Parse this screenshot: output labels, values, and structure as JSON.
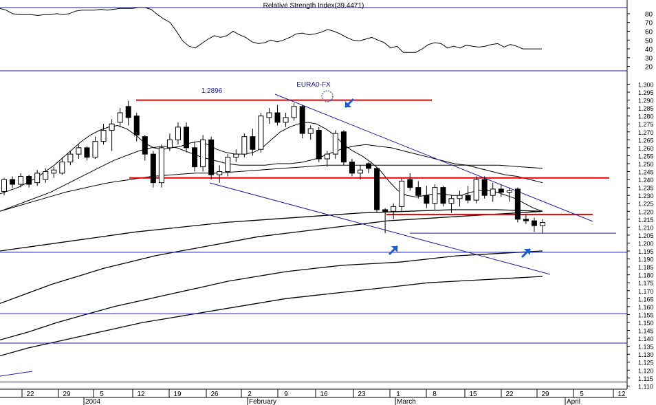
{
  "chart_data": [
    {
      "type": "line",
      "title": "Relative Strength Index(39.4471)",
      "yticks": [
        20,
        30,
        40,
        50,
        60,
        70,
        80
      ],
      "ylim": [
        15,
        87
      ],
      "reference_lines": [
        80,
        20
      ],
      "series": [
        {
          "values": [
            86,
            84,
            80,
            79,
            79,
            79,
            78,
            79,
            79,
            80,
            79,
            80,
            83,
            84,
            84,
            84,
            85,
            84,
            85,
            86,
            86,
            86,
            87,
            87,
            85,
            79,
            74,
            70,
            60,
            49,
            43,
            41,
            46,
            51,
            55,
            53,
            55,
            60,
            56,
            53,
            48,
            46,
            47,
            50,
            48,
            50,
            53,
            57,
            58,
            56,
            57,
            59,
            62,
            60,
            57,
            53,
            50,
            49,
            51,
            53,
            50,
            47,
            41,
            43,
            36,
            36,
            36,
            40,
            45,
            47,
            46,
            41,
            43,
            41,
            44,
            43,
            42,
            43,
            45,
            46,
            42,
            45,
            43,
            40,
            40,
            40,
            40
          ]
        }
      ]
    },
    {
      "type": "candlestick",
      "instrument": "EURA0-FX",
      "annotation": "1,2896",
      "yticks": [
        "1.300",
        "1.295",
        "1.290",
        "1.285",
        "1.280",
        "1.275",
        "1.270",
        "1.265",
        "1.260",
        "1.255",
        "1.250",
        "1.245",
        "1.240",
        "1.235",
        "1.230",
        "1.225",
        "1.220",
        "1.215",
        "1.210",
        "1.205",
        "1.200",
        "1.195",
        "1.190",
        "1.185",
        "1.180",
        "1.175",
        "1.170",
        "1.165",
        "1.160",
        "1.155",
        "1.150",
        "1.145",
        "1.140",
        "1.135",
        "1.130",
        "1.125",
        "1.120",
        "1.115",
        "1.110"
      ],
      "ylim": [
        1.108,
        1.308
      ],
      "x_labels": [
        "22",
        "29",
        "5",
        "12",
        "19",
        "26",
        "2",
        "9",
        "16",
        "23",
        "1",
        "8",
        "15",
        "22",
        "29",
        "5",
        "12"
      ],
      "month_labels": [
        "2004",
        "February",
        "March",
        "April"
      ],
      "candles": [
        {
          "o": 1.2325,
          "h": 1.241,
          "l": 1.23,
          "c": 1.24
        },
        {
          "o": 1.24,
          "h": 1.242,
          "l": 1.2345,
          "c": 1.237
        },
        {
          "o": 1.237,
          "h": 1.244,
          "l": 1.235,
          "c": 1.242
        },
        {
          "o": 1.242,
          "h": 1.243,
          "l": 1.235,
          "c": 1.237
        },
        {
          "o": 1.238,
          "h": 1.246,
          "l": 1.236,
          "c": 1.244
        },
        {
          "o": 1.24,
          "h": 1.247,
          "l": 1.238,
          "c": 1.245
        },
        {
          "o": 1.244,
          "h": 1.248,
          "l": 1.241,
          "c": 1.246
        },
        {
          "o": 1.244,
          "h": 1.254,
          "l": 1.243,
          "c": 1.251
        },
        {
          "o": 1.251,
          "h": 1.258,
          "l": 1.249,
          "c": 1.256
        },
        {
          "o": 1.256,
          "h": 1.262,
          "l": 1.253,
          "c": 1.26
        },
        {
          "o": 1.26,
          "h": 1.261,
          "l": 1.252,
          "c": 1.254
        },
        {
          "o": 1.254,
          "h": 1.267,
          "l": 1.253,
          "c": 1.264
        },
        {
          "o": 1.264,
          "h": 1.275,
          "l": 1.262,
          "c": 1.271
        },
        {
          "o": 1.271,
          "h": 1.278,
          "l": 1.258,
          "c": 1.275
        },
        {
          "o": 1.276,
          "h": 1.285,
          "l": 1.273,
          "c": 1.282
        },
        {
          "o": 1.286,
          "h": 1.2896,
          "l": 1.274,
          "c": 1.279
        },
        {
          "o": 1.28,
          "h": 1.282,
          "l": 1.264,
          "c": 1.268
        },
        {
          "o": 1.267,
          "h": 1.268,
          "l": 1.252,
          "c": 1.256
        },
        {
          "o": 1.256,
          "h": 1.258,
          "l": 1.235,
          "c": 1.238
        },
        {
          "o": 1.238,
          "h": 1.262,
          "l": 1.235,
          "c": 1.26
        },
        {
          "o": 1.26,
          "h": 1.269,
          "l": 1.258,
          "c": 1.265
        },
        {
          "o": 1.265,
          "h": 1.276,
          "l": 1.262,
          "c": 1.273
        },
        {
          "o": 1.273,
          "h": 1.276,
          "l": 1.257,
          "c": 1.26
        },
        {
          "o": 1.26,
          "h": 1.264,
          "l": 1.245,
          "c": 1.248
        },
        {
          "o": 1.248,
          "h": 1.268,
          "l": 1.245,
          "c": 1.265
        },
        {
          "o": 1.265,
          "h": 1.267,
          "l": 1.24,
          "c": 1.243
        },
        {
          "o": 1.243,
          "h": 1.249,
          "l": 1.238,
          "c": 1.245
        },
        {
          "o": 1.245,
          "h": 1.256,
          "l": 1.242,
          "c": 1.254
        },
        {
          "o": 1.254,
          "h": 1.259,
          "l": 1.251,
          "c": 1.256
        },
        {
          "o": 1.256,
          "h": 1.269,
          "l": 1.254,
          "c": 1.267
        },
        {
          "o": 1.267,
          "h": 1.272,
          "l": 1.255,
          "c": 1.259
        },
        {
          "o": 1.259,
          "h": 1.282,
          "l": 1.257,
          "c": 1.28
        },
        {
          "o": 1.279,
          "h": 1.285,
          "l": 1.275,
          "c": 1.282
        },
        {
          "o": 1.282,
          "h": 1.287,
          "l": 1.274,
          "c": 1.276
        },
        {
          "o": 1.276,
          "h": 1.282,
          "l": 1.273,
          "c": 1.279
        },
        {
          "o": 1.279,
          "h": 1.288,
          "l": 1.277,
          "c": 1.286
        },
        {
          "o": 1.286,
          "h": 1.287,
          "l": 1.266,
          "c": 1.269
        },
        {
          "o": 1.269,
          "h": 1.274,
          "l": 1.265,
          "c": 1.272
        },
        {
          "o": 1.271,
          "h": 1.273,
          "l": 1.251,
          "c": 1.253
        },
        {
          "o": 1.253,
          "h": 1.258,
          "l": 1.248,
          "c": 1.256
        },
        {
          "o": 1.256,
          "h": 1.271,
          "l": 1.253,
          "c": 1.269
        },
        {
          "o": 1.27,
          "h": 1.271,
          "l": 1.249,
          "c": 1.251
        },
        {
          "o": 1.251,
          "h": 1.253,
          "l": 1.242,
          "c": 1.244
        },
        {
          "o": 1.244,
          "h": 1.249,
          "l": 1.24,
          "c": 1.246
        },
        {
          "o": 1.25,
          "h": 1.251,
          "l": 1.244,
          "c": 1.247
        },
        {
          "o": 1.247,
          "h": 1.248,
          "l": 1.219,
          "c": 1.221
        },
        {
          "o": 1.221,
          "h": 1.222,
          "l": 1.2062,
          "c": 1.22
        },
        {
          "o": 1.22,
          "h": 1.225,
          "l": 1.215,
          "c": 1.223
        },
        {
          "o": 1.223,
          "h": 1.241,
          "l": 1.22,
          "c": 1.239
        },
        {
          "o": 1.24,
          "h": 1.244,
          "l": 1.233,
          "c": 1.235
        },
        {
          "o": 1.235,
          "h": 1.239,
          "l": 1.228,
          "c": 1.23
        },
        {
          "o": 1.23,
          "h": 1.236,
          "l": 1.222,
          "c": 1.225
        },
        {
          "o": 1.225,
          "h": 1.237,
          "l": 1.221,
          "c": 1.235
        },
        {
          "o": 1.235,
          "h": 1.236,
          "l": 1.223,
          "c": 1.225
        },
        {
          "o": 1.225,
          "h": 1.23,
          "l": 1.219,
          "c": 1.228
        },
        {
          "o": 1.228,
          "h": 1.233,
          "l": 1.223,
          "c": 1.23
        },
        {
          "o": 1.23,
          "h": 1.236,
          "l": 1.225,
          "c": 1.227
        },
        {
          "o": 1.227,
          "h": 1.242,
          "l": 1.225,
          "c": 1.24
        },
        {
          "o": 1.24,
          "h": 1.242,
          "l": 1.228,
          "c": 1.23
        },
        {
          "o": 1.23,
          "h": 1.238,
          "l": 1.226,
          "c": 1.234
        },
        {
          "o": 1.234,
          "h": 1.237,
          "l": 1.229,
          "c": 1.232
        },
        {
          "o": 1.232,
          "h": 1.235,
          "l": 1.226,
          "c": 1.233
        },
        {
          "o": 1.234,
          "h": 1.235,
          "l": 1.213,
          "c": 1.215
        },
        {
          "o": 1.215,
          "h": 1.218,
          "l": 1.212,
          "c": 1.214
        },
        {
          "o": 1.214,
          "h": 1.216,
          "l": 1.207,
          "c": 1.211
        },
        {
          "o": 1.211,
          "h": 1.215,
          "l": 1.206,
          "c": 1.213
        }
      ],
      "moving_averages": [
        [
          [
            1.231,
            1.233,
            1.235,
            1.238,
            1.241,
            1.245,
            1.249,
            1.254,
            1.259,
            1.264,
            1.268,
            1.271,
            1.273,
            1.274,
            1.272,
            1.268,
            1.263,
            1.26,
            1.259,
            1.26,
            1.261,
            1.263,
            1.264,
            1.262,
            1.259,
            1.257,
            1.256,
            1.256,
            1.257,
            1.26,
            1.265,
            1.27,
            1.273,
            1.275,
            1.276,
            1.275,
            1.272,
            1.268,
            1.262,
            1.258,
            1.255,
            1.251,
            1.246,
            1.239,
            1.233,
            1.23,
            1.229,
            1.23,
            1.231,
            1.231,
            1.23,
            1.23,
            1.232,
            1.233,
            1.233,
            1.232,
            1.23,
            1.228,
            1.225,
            1.222,
            1.22
          ]
        ],
        [
          [
            1.22,
            1.223,
            1.226,
            1.229,
            1.232,
            1.236,
            1.24,
            1.244,
            1.248,
            1.252,
            1.255,
            1.258,
            1.26,
            1.261,
            1.26,
            1.257,
            1.254,
            1.252,
            1.25,
            1.249,
            1.249,
            1.249,
            1.25,
            1.25,
            1.251,
            1.253,
            1.256,
            1.259,
            1.261,
            1.262,
            1.261,
            1.26,
            1.258,
            1.256,
            1.254,
            1.252,
            1.25,
            1.249,
            1.247,
            1.245,
            1.243,
            1.242,
            1.24,
            1.238
          ]
        ],
        [
          [
            1.22,
            1.224,
            1.228,
            1.232,
            1.235,
            1.238,
            1.24,
            1.242,
            1.243,
            1.244,
            1.244,
            1.245,
            1.246,
            1.247,
            1.248,
            1.249,
            1.249,
            1.249,
            1.249,
            1.249,
            1.249,
            1.249,
            1.249,
            1.249,
            1.248,
            1.247
          ]
        ],
        [
          [
            1.195,
            1.199,
            1.203,
            1.207,
            1.21,
            1.213,
            1.215,
            1.217,
            1.219,
            1.22,
            1.221,
            1.221,
            1.22
          ]
        ],
        [
          [
            1.162,
            1.168,
            1.174,
            1.179,
            1.184,
            1.188,
            1.192,
            1.195,
            1.198,
            1.201,
            1.204,
            1.206,
            1.208,
            1.21,
            1.212,
            1.214,
            1.215,
            1.216,
            1.217,
            1.218,
            1.219,
            1.22
          ]
        ],
        [
          [
            1.139,
            1.144,
            1.15,
            1.155,
            1.16,
            1.164,
            1.168,
            1.172,
            1.176,
            1.179,
            1.182,
            1.184,
            1.186,
            1.187,
            1.188,
            1.19,
            1.192,
            1.193,
            1.194,
            1.195
          ]
        ],
        [
          [
            1.129,
            1.134,
            1.138,
            1.142,
            1.146,
            1.15,
            1.153,
            1.156,
            1.159,
            1.162,
            1.165,
            1.167,
            1.169,
            1.171,
            1.173,
            1.175,
            1.176,
            1.177,
            1.178,
            1.179
          ]
        ]
      ],
      "horizontal_lines": [
        1.241,
        1.218,
        1.2062,
        1.1942,
        1.1555,
        1.137,
        1.1125
      ],
      "resistance_top": 1.29,
      "colors": {
        "up": "#ffffff",
        "down": "#000000",
        "support_resistance": "#e00000",
        "trend": "#1a1aa8",
        "arrow": "#1a5cd6",
        "grid": "#1a1aa8"
      }
    }
  ]
}
